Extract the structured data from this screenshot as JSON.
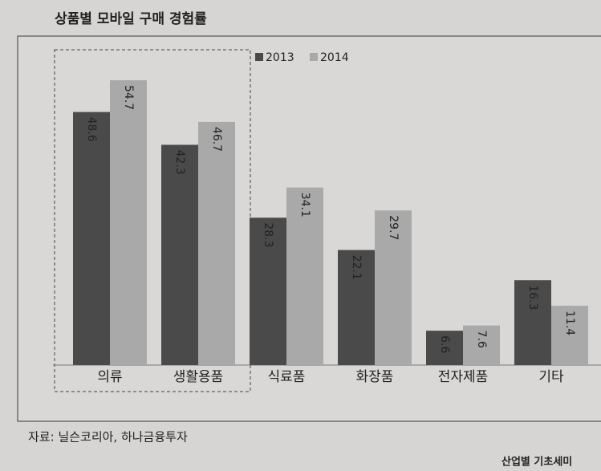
{
  "chart_data": {
    "type": "bar",
    "title": "상품별 모바일 구매 경험률",
    "categories": [
      "의류",
      "생활용품",
      "식료품",
      "화장품",
      "전자제품",
      "기타"
    ],
    "series": [
      {
        "name": "2013",
        "color": "#4a4a4a",
        "values": [
          48.6,
          42.3,
          28.3,
          22.1,
          6.6,
          16.3
        ]
      },
      {
        "name": "2014",
        "color": "#a9a9a9",
        "values": [
          54.7,
          46.7,
          34.1,
          29.7,
          7.6,
          11.4
        ]
      }
    ],
    "source": "자료: 닐슨코리아, 하나금융투자",
    "footer": "산업별 기초세미"
  }
}
